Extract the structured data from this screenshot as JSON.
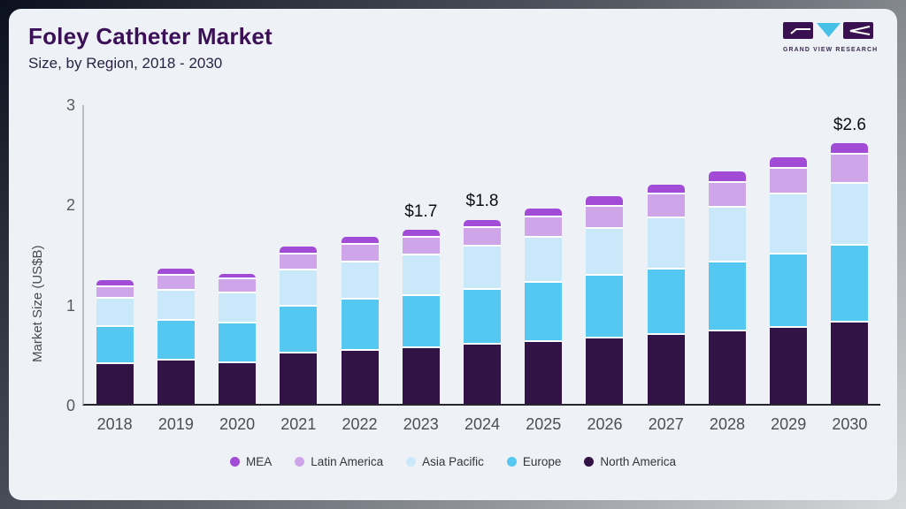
{
  "card": {
    "title": "Foley Catheter Market",
    "subtitle": "Size, by Region, 2018 - 2030",
    "logo_text": "GRAND VIEW RESEARCH"
  },
  "colors": {
    "card_bg": "#eef2f7",
    "title": "#3b1056",
    "logo_purple": "#3a1150",
    "logo_cyan": "#47c0e8",
    "axis_line_dark": "#26262e",
    "axis_line_light": "#b9bfc7"
  },
  "chart_data": {
    "type": "bar",
    "stacked": true,
    "title": "Foley Catheter Market",
    "subtitle": "Size, by Region, 2018 - 2030",
    "xlabel": "",
    "ylabel": "Market Size (US$B)",
    "ylim": [
      0,
      3
    ],
    "yticks": [
      0,
      1,
      2,
      3
    ],
    "grid": false,
    "legend_position": "bottom",
    "categories": [
      "2018",
      "2019",
      "2020",
      "2021",
      "2022",
      "2023",
      "2024",
      "2025",
      "2026",
      "2027",
      "2028",
      "2029",
      "2030"
    ],
    "series": [
      {
        "name": "North America",
        "color": "#321345",
        "values": [
          0.4,
          0.43,
          0.41,
          0.5,
          0.53,
          0.56,
          0.59,
          0.62,
          0.65,
          0.69,
          0.72,
          0.76,
          0.81
        ]
      },
      {
        "name": "Europe",
        "color": "#55c8f1",
        "values": [
          0.37,
          0.4,
          0.39,
          0.47,
          0.51,
          0.52,
          0.55,
          0.59,
          0.63,
          0.65,
          0.69,
          0.73,
          0.77
        ]
      },
      {
        "name": "Asia Pacific",
        "color": "#c9e9fa",
        "values": [
          0.28,
          0.3,
          0.3,
          0.36,
          0.37,
          0.4,
          0.43,
          0.45,
          0.47,
          0.51,
          0.55,
          0.6,
          0.62
        ]
      },
      {
        "name": "Latin America",
        "color": "#cfa5e9",
        "values": [
          0.12,
          0.15,
          0.14,
          0.16,
          0.18,
          0.18,
          0.19,
          0.2,
          0.22,
          0.24,
          0.25,
          0.26,
          0.29
        ]
      },
      {
        "name": "MEA",
        "color": "#a14bd6",
        "values": [
          0.07,
          0.07,
          0.06,
          0.08,
          0.08,
          0.08,
          0.08,
          0.09,
          0.1,
          0.1,
          0.11,
          0.11,
          0.11
        ]
      }
    ],
    "annotations": [
      {
        "category": "2023",
        "label": "$1.7"
      },
      {
        "category": "2024",
        "label": "$1.8"
      },
      {
        "category": "2030",
        "label": "$2.6"
      }
    ]
  }
}
